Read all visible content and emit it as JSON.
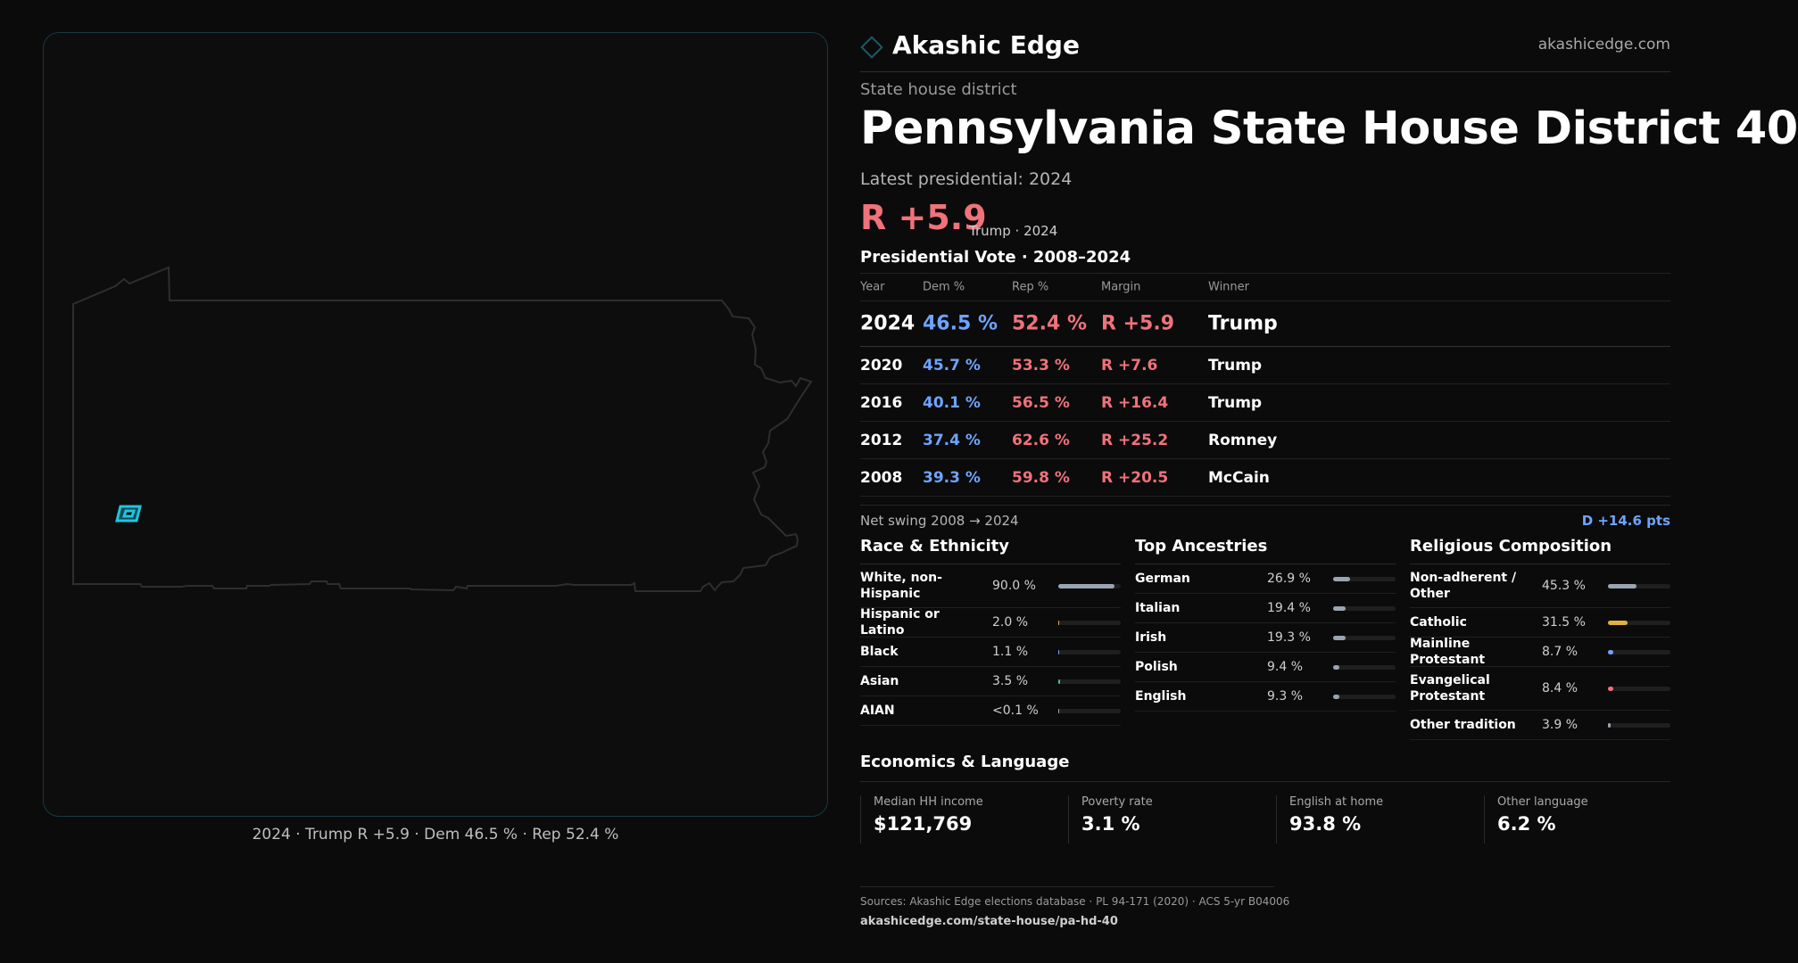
{
  "map": {
    "caption": "2024 · Trump R +5.9 · Dem 46.5 % · Rep 52.4 %",
    "highlight_color": "#21c4dd"
  },
  "brand": {
    "name": "Akashic Edge",
    "url": "akashicedge.com"
  },
  "header": {
    "category": "State house district",
    "title": "Pennsylvania State House District 40",
    "latest_label": "Latest presidential: 2024",
    "margin": "R +5.9",
    "margin_sub": "Trump · 2024"
  },
  "vote_table": {
    "title": "Presidential Vote · 2008–2024",
    "columns": [
      "Year",
      "Dem %",
      "Rep %",
      "Margin",
      "Winner"
    ],
    "rows": [
      {
        "year": "2024",
        "dem": "46.5 %",
        "rep": "52.4 %",
        "margin": "R +5.9",
        "winner": "Trump"
      },
      {
        "year": "2020",
        "dem": "45.7 %",
        "rep": "53.3 %",
        "margin": "R +7.6",
        "winner": "Trump"
      },
      {
        "year": "2016",
        "dem": "40.1 %",
        "rep": "56.5 %",
        "margin": "R +16.4",
        "winner": "Trump"
      },
      {
        "year": "2012",
        "dem": "37.4 %",
        "rep": "62.6 %",
        "margin": "R +25.2",
        "winner": "Romney"
      },
      {
        "year": "2008",
        "dem": "39.3 %",
        "rep": "59.8 %",
        "margin": "R +20.5",
        "winner": "McCain"
      }
    ]
  },
  "swing": {
    "label": "Net swing 2008 → 2024",
    "value": "D +14.6 pts"
  },
  "race": {
    "title": "Race & Ethnicity",
    "items": [
      {
        "label": "White, non-Hispanic",
        "value": "90.0 %",
        "pct": 90.0,
        "color": "#9aa4b2"
      },
      {
        "label": "Hispanic or Latino",
        "value": "2.0 %",
        "pct": 2.0,
        "color": "#e0b040"
      },
      {
        "label": "Black",
        "value": "1.1 %",
        "pct": 1.1,
        "color": "#6ea4ff"
      },
      {
        "label": "Asian",
        "value": "3.5 %",
        "pct": 3.5,
        "color": "#3cc48a"
      },
      {
        "label": "AIAN",
        "value": "<0.1 %",
        "pct": 0.05,
        "color": "#9aa4b2"
      }
    ]
  },
  "ancestry": {
    "title": "Top Ancestries",
    "items": [
      {
        "label": "German",
        "value": "26.9 %",
        "pct": 26.9,
        "color": "#9aa4b2"
      },
      {
        "label": "Italian",
        "value": "19.4 %",
        "pct": 19.4,
        "color": "#9aa4b2"
      },
      {
        "label": "Irish",
        "value": "19.3 %",
        "pct": 19.3,
        "color": "#9aa4b2"
      },
      {
        "label": "Polish",
        "value": "9.4 %",
        "pct": 9.4,
        "color": "#9aa4b2"
      },
      {
        "label": "English",
        "value": "9.3 %",
        "pct": 9.3,
        "color": "#9aa4b2"
      }
    ]
  },
  "religion": {
    "title": "Religious Composition",
    "items": [
      {
        "label": "Non-adherent / Other",
        "value": "45.3 %",
        "pct": 45.3,
        "color": "#9aa4b2"
      },
      {
        "label": "Catholic",
        "value": "31.5 %",
        "pct": 31.5,
        "color": "#e0b040"
      },
      {
        "label": "Mainline Protestant",
        "value": "8.7 %",
        "pct": 8.7,
        "color": "#6ea4ff"
      },
      {
        "label": "Evangelical Protestant",
        "value": "8.4 %",
        "pct": 8.4,
        "color": "#f0727a"
      },
      {
        "label": "Other tradition",
        "value": "3.9 %",
        "pct": 3.9,
        "color": "#9aa4b2"
      }
    ]
  },
  "economics": {
    "title": "Economics & Language",
    "items": [
      {
        "label": "Median HH income",
        "value": "$121,769"
      },
      {
        "label": "Poverty rate",
        "value": "3.1 %"
      },
      {
        "label": "English at home",
        "value": "93.8 %"
      },
      {
        "label": "Other language",
        "value": "6.2 %"
      }
    ]
  },
  "footer": {
    "sources": "Sources: Akashic Edge elections database · PL 94-171 (2020) · ACS 5-yr B04006",
    "url": "akashicedge.com/state-house/pa-hd-40"
  }
}
